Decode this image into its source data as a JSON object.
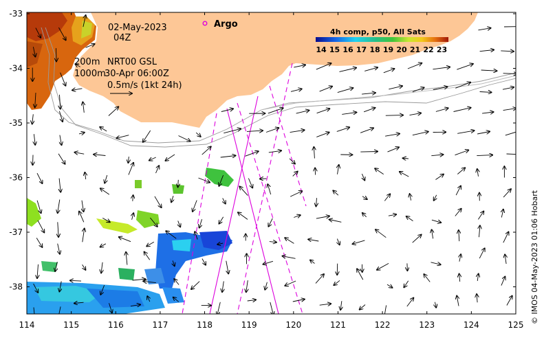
{
  "map": {
    "date": "02-May-2023",
    "time": "04Z",
    "argo_label": "Argo",
    "isobaths": {
      "shallow": "200m",
      "deep": "1000m"
    },
    "current_product": "NRT00 GSL",
    "current_time": "30-Apr 06:00Z",
    "scale_label": "0.5m/s (1kt 24h)",
    "sst_title": "4h comp, p50, All Sats",
    "sst_ticks": [
      "14",
      "15",
      "16",
      "17",
      "18",
      "19",
      "20",
      "21",
      "22",
      "23"
    ],
    "credit": "© IMOS 04-May-2023 01:06 Hobart",
    "x_ticks": [
      "114",
      "115",
      "116",
      "117",
      "118",
      "119",
      "120",
      "121",
      "122",
      "123",
      "124",
      "125"
    ],
    "y_ticks": [
      "-33",
      "-34",
      "-35",
      "-36",
      "-37",
      "-38"
    ],
    "colors": {
      "land": "#fdc796",
      "ocean": "#ffffff",
      "track": "#dd00dd",
      "isobath": "#9a9a9a"
    }
  }
}
